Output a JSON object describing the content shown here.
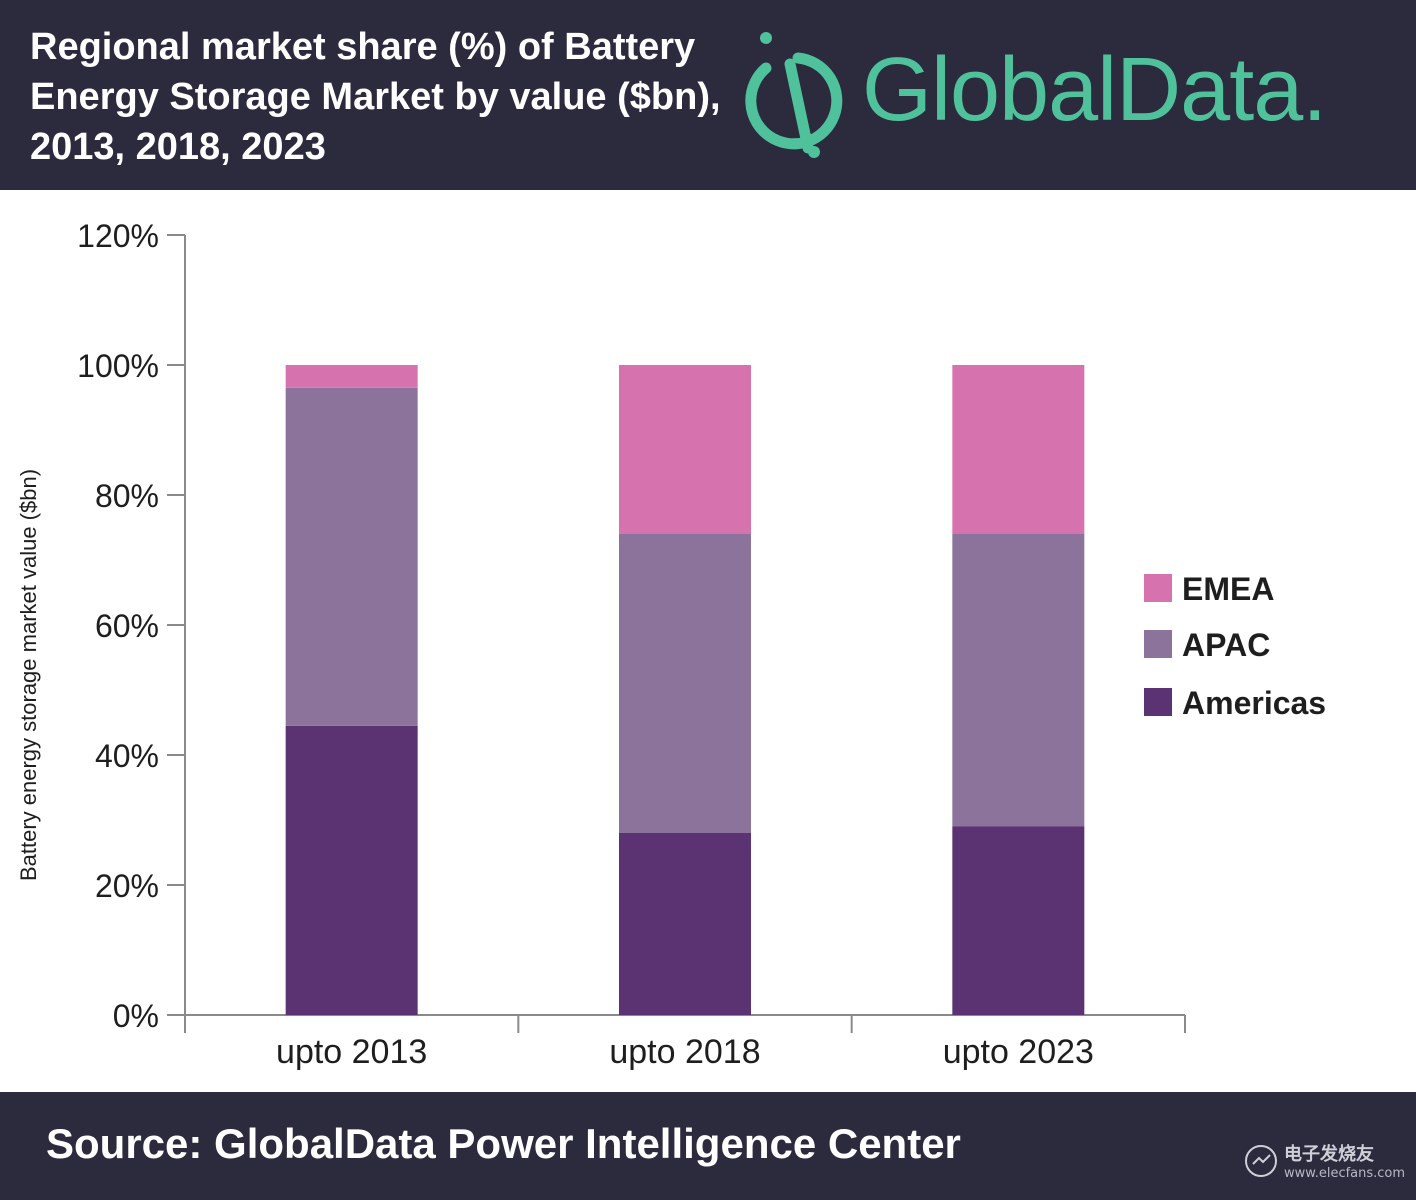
{
  "header": {
    "title": "Regional market share (%) of Battery Energy Storage Market by value ($bn), 2013, 2018, 2023",
    "logo_text": "GlobalData."
  },
  "footer": {
    "source": "Source:  GlobalData Power Intelligence Center"
  },
  "watermark": {
    "name": "电子发烧友",
    "url": "www.elecfans.com"
  },
  "colors": {
    "header_bg": "#2c2a3d",
    "brand_green": "#4fc29c",
    "americas": "#5b3372",
    "apac": "#8b739c",
    "emea": "#d672ae",
    "axis": "#8a8a8a"
  },
  "chart_data": {
    "type": "bar",
    "stacked": true,
    "categories": [
      "upto 2013",
      "upto 2018",
      "upto 2023"
    ],
    "series": [
      {
        "name": "Americas",
        "values": [
          44.5,
          28,
          29
        ],
        "color": "#5b3372"
      },
      {
        "name": "APAC",
        "values": [
          52,
          46,
          45
        ],
        "color": "#8b739c"
      },
      {
        "name": "EMEA",
        "values": [
          3.5,
          26,
          26
        ],
        "color": "#d672ae"
      }
    ],
    "ylabel": "Battery energy storage market value ($bn)",
    "ylim": [
      0,
      120
    ],
    "yticks": [
      "0%",
      "20%",
      "40%",
      "60%",
      "80%",
      "100%",
      "120%"
    ],
    "legend_order": [
      "EMEA",
      "APAC",
      "Americas"
    ],
    "legend_position": "right",
    "grid": false
  }
}
